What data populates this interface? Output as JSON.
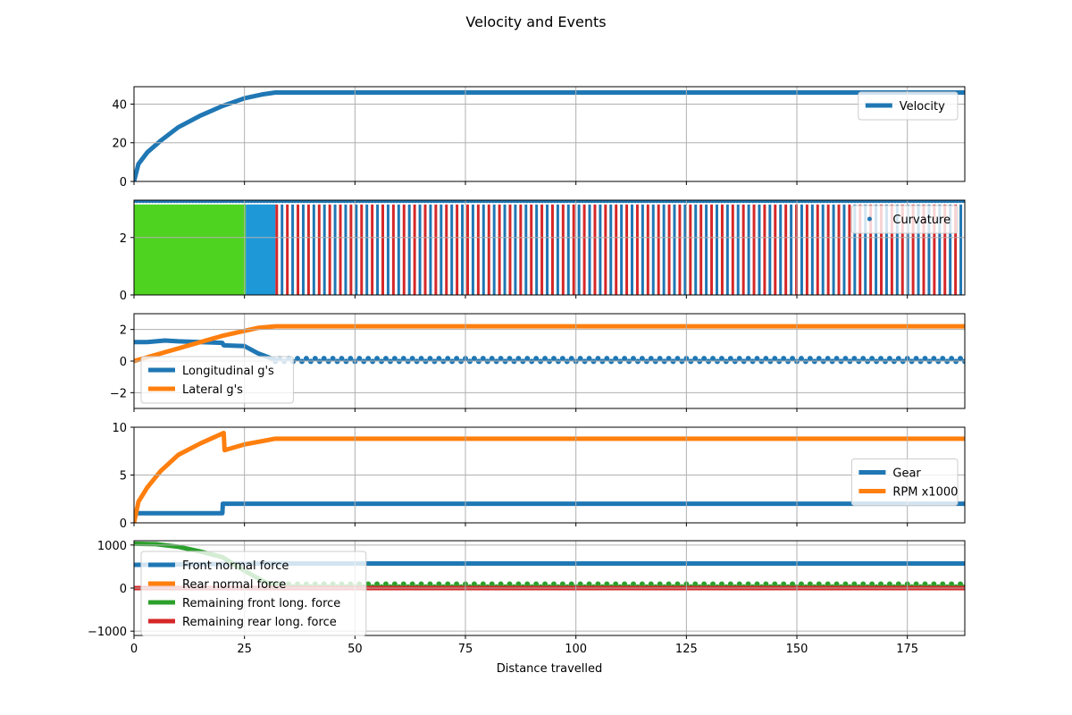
{
  "figure": {
    "title": "Velocity and Events",
    "xlabel": "Distance travelled"
  },
  "chart_data": [
    {
      "type": "line",
      "panel": 1,
      "xlim": [
        0,
        188
      ],
      "ylim": [
        0,
        49
      ],
      "yticks": [
        0,
        20,
        40
      ],
      "grid": true,
      "legend_position": "upper-right",
      "series": [
        {
          "name": "Velocity",
          "color": "#1f77b4",
          "x": [
            0,
            1,
            3,
            6,
            10,
            15,
            20,
            25,
            29,
            32,
            50,
            100,
            150,
            188
          ],
          "y": [
            0,
            9,
            15,
            21,
            28,
            34,
            39,
            43,
            45,
            46,
            46,
            46,
            46,
            46
          ]
        }
      ]
    },
    {
      "type": "bar",
      "panel": 2,
      "xlim": [
        0,
        188
      ],
      "ylim": [
        0,
        3.3
      ],
      "yticks": [
        0,
        2
      ],
      "grid": true,
      "legend_position": "upper-right",
      "regions": [
        {
          "x0": 0,
          "x1": 25.3,
          "color": "#4fd321"
        },
        {
          "x0": 25.3,
          "x1": 32,
          "color": "#1f98d7"
        }
      ],
      "stripes": {
        "x0": 32,
        "x1": 188,
        "step": 1.2,
        "colors": [
          "#d62728",
          "#1f77b4"
        ],
        "height": 3.15
      },
      "series": [
        {
          "name": "Curvature",
          "color": "#1f77b4",
          "marker": "dot",
          "x": [
            0,
            188
          ],
          "y": [
            3.3,
            3.3
          ]
        }
      ]
    },
    {
      "type": "line",
      "panel": 3,
      "xlim": [
        0,
        188
      ],
      "ylim": [
        -3,
        3
      ],
      "yticks": [
        -2,
        0,
        2
      ],
      "grid": true,
      "legend_position": "lower-left",
      "series": [
        {
          "name": "Longitudinal g's",
          "color": "#1f77b4",
          "x": [
            0,
            3,
            7,
            10,
            15,
            20,
            20.3,
            25,
            28,
            32,
            188
          ],
          "y": [
            1.2,
            1.2,
            1.3,
            1.25,
            1.2,
            1.15,
            1.0,
            0.95,
            0.5,
            0.07,
            0.07
          ],
          "dotted_from": 32
        },
        {
          "name": "Lateral g's",
          "color": "#ff7f0e",
          "x": [
            0,
            10,
            20,
            28,
            32,
            188
          ],
          "y": [
            0,
            0.8,
            1.6,
            2.1,
            2.2,
            2.2
          ]
        }
      ]
    },
    {
      "type": "line",
      "panel": 4,
      "xlim": [
        0,
        188
      ],
      "ylim": [
        0,
        10
      ],
      "yticks": [
        0,
        5,
        10
      ],
      "grid": true,
      "legend_position": "center-right",
      "series": [
        {
          "name": "Gear",
          "color": "#1f77b4",
          "x": [
            1,
            20,
            20.1,
            188
          ],
          "y": [
            1,
            1,
            2,
            2
          ]
        },
        {
          "name": "RPM x1000",
          "color": "#ff7f0e",
          "x": [
            0,
            1,
            3,
            6,
            10,
            15,
            20.3,
            20.5,
            25,
            32,
            188
          ],
          "y": [
            0,
            2.2,
            3.7,
            5.4,
            7.1,
            8.3,
            9.4,
            7.6,
            8.2,
            8.8,
            8.8
          ]
        }
      ]
    },
    {
      "type": "line",
      "panel": 5,
      "xlim": [
        0,
        188
      ],
      "ylim": [
        -1100,
        1100
      ],
      "yticks": [
        -1000,
        0,
        1000
      ],
      "xticks": [
        0,
        25,
        50,
        75,
        100,
        125,
        150,
        175
      ],
      "grid": true,
      "legend_position": "upper-left",
      "series": [
        {
          "name": "Front normal force",
          "color": "#1f77b4",
          "x": [
            0,
            30,
            188
          ],
          "y": [
            540,
            570,
            570
          ]
        },
        {
          "name": "Rear normal force",
          "color": "#ff7f0e",
          "x": [
            0,
            188
          ],
          "y": [
            0,
            0
          ]
        },
        {
          "name": "Remaining front long. force",
          "color": "#2ca02c",
          "x": [
            0,
            5,
            10,
            15,
            20,
            25,
            30,
            33,
            188
          ],
          "y": [
            1030,
            1020,
            960,
            850,
            720,
            400,
            120,
            60,
            60
          ],
          "dotted_from": 33
        },
        {
          "name": "Remaining rear long. force",
          "color": "#d62728",
          "x": [
            0,
            188
          ],
          "y": [
            0,
            0
          ]
        }
      ]
    }
  ]
}
